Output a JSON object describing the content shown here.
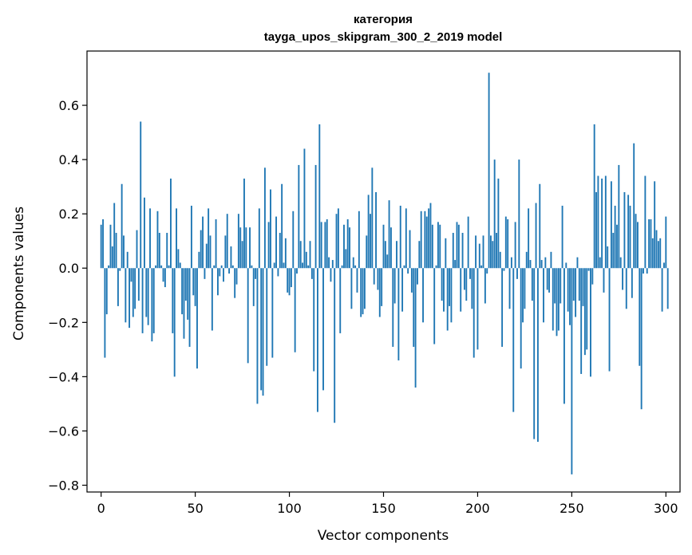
{
  "chart_data": {
    "type": "bar",
    "title": "категория",
    "subtitle": "tayga_upos_skipgram_300_2_2019 model",
    "xlabel": "Vector components",
    "ylabel": "Components values",
    "xlim": [
      -7.5,
      307.5
    ],
    "ylim": [
      -0.825,
      0.8
    ],
    "xticks": [
      0,
      50,
      100,
      150,
      200,
      250,
      300
    ],
    "xtick_labels": [
      "0",
      "50",
      "100",
      "150",
      "200",
      "250",
      "300"
    ],
    "yticks": [
      -0.8,
      -0.6,
      -0.4,
      -0.2,
      0.0,
      0.2,
      0.4,
      0.6
    ],
    "ytick_labels": [
      "−0.8",
      "−0.6",
      "−0.4",
      "−0.2",
      "0.0",
      "0.2",
      "0.4",
      "0.6"
    ],
    "bar_color": "#1f77b4",
    "values": [
      0.16,
      0.18,
      -0.33,
      -0.17,
      0.01,
      0.16,
      0.08,
      0.24,
      0.13,
      -0.14,
      -0.01,
      0.31,
      0.12,
      -0.2,
      0.06,
      -0.22,
      -0.05,
      -0.18,
      -0.15,
      0.14,
      -0.12,
      0.54,
      -0.24,
      0.26,
      -0.18,
      -0.21,
      0.22,
      -0.27,
      -0.24,
      0.01,
      0.21,
      0.13,
      0.01,
      -0.05,
      -0.07,
      0.13,
      0.01,
      0.33,
      -0.24,
      -0.4,
      0.22,
      0.07,
      0.02,
      -0.17,
      -0.26,
      -0.12,
      -0.19,
      -0.29,
      0.23,
      -0.1,
      -0.14,
      -0.37,
      0.06,
      0.14,
      0.19,
      -0.04,
      0.09,
      0.22,
      0.12,
      -0.23,
      0.01,
      0.18,
      -0.1,
      -0.03,
      0.01,
      -0.05,
      0.12,
      0.2,
      -0.02,
      0.08,
      0.01,
      -0.11,
      -0.06,
      0.2,
      0.15,
      0.1,
      0.33,
      0.15,
      -0.35,
      0.15,
      0.01,
      -0.14,
      -0.04,
      -0.5,
      0.22,
      -0.45,
      -0.47,
      0.37,
      -0.36,
      0.17,
      0.29,
      -0.33,
      0.02,
      0.19,
      -0.03,
      0.13,
      0.31,
      0.02,
      0.11,
      -0.09,
      -0.1,
      -0.07,
      0.21,
      -0.31,
      -0.02,
      0.38,
      0.1,
      0.02,
      0.44,
      0.06,
      0.01,
      0.1,
      -0.04,
      -0.38,
      0.38,
      -0.53,
      0.53,
      0.17,
      -0.45,
      0.17,
      0.18,
      0.04,
      -0.05,
      0.03,
      -0.57,
      0.2,
      0.22,
      -0.24,
      0.01,
      0.16,
      0.07,
      0.18,
      0.15,
      -0.15,
      0.04,
      0.01,
      -0.09,
      0.21,
      -0.18,
      -0.17,
      -0.15,
      0.12,
      0.27,
      0.2,
      0.37,
      -0.06,
      0.28,
      -0.08,
      -0.18,
      -0.14,
      0.16,
      0.1,
      0.05,
      0.25,
      0.15,
      -0.29,
      -0.13,
      0.1,
      -0.34,
      0.23,
      -0.16,
      0.01,
      0.22,
      -0.02,
      0.14,
      -0.09,
      -0.29,
      -0.44,
      -0.06,
      0.1,
      0.21,
      -0.2,
      0.21,
      0.19,
      0.22,
      0.24,
      0.16,
      -0.28,
      0.01,
      0.17,
      0.16,
      -0.12,
      -0.16,
      0.11,
      -0.23,
      -0.14,
      -0.2,
      0.13,
      0.03,
      0.17,
      0.16,
      -0.16,
      0.13,
      -0.08,
      -0.12,
      0.19,
      -0.04,
      -0.15,
      -0.33,
      0.12,
      -0.3,
      0.09,
      0.01,
      0.12,
      -0.13,
      -0.02,
      0.72,
      0.12,
      0.1,
      0.4,
      0.13,
      0.33,
      0.06,
      -0.29,
      -0.01,
      0.19,
      0.18,
      -0.15,
      0.04,
      -0.53,
      0.17,
      -0.04,
      0.4,
      -0.37,
      -0.2,
      -0.15,
      0.06,
      0.22,
      0.03,
      -0.12,
      -0.63,
      0.24,
      -0.64,
      0.31,
      0.03,
      -0.2,
      0.04,
      -0.08,
      -0.09,
      0.06,
      -0.23,
      -0.13,
      -0.25,
      -0.23,
      -0.13,
      0.23,
      -0.5,
      0.02,
      -0.16,
      -0.21,
      -0.76,
      -0.12,
      -0.18,
      0.04,
      -0.12,
      -0.39,
      -0.14,
      -0.32,
      -0.3,
      -0.01,
      -0.4,
      -0.06,
      0.53,
      0.28,
      0.34,
      0.04,
      0.33,
      -0.09,
      0.34,
      0.08,
      -0.38,
      0.32,
      0.13,
      0.23,
      0.16,
      0.38,
      0.04,
      -0.08,
      0.28,
      -0.15,
      0.27,
      0.23,
      -0.11,
      0.46,
      0.2,
      0.17,
      -0.36,
      -0.52,
      -0.02,
      0.34,
      -0.02,
      0.18,
      0.18,
      0.11,
      0.32,
      0.14,
      0.1,
      0.11,
      -0.16,
      0.02,
      0.19,
      -0.15
    ]
  }
}
